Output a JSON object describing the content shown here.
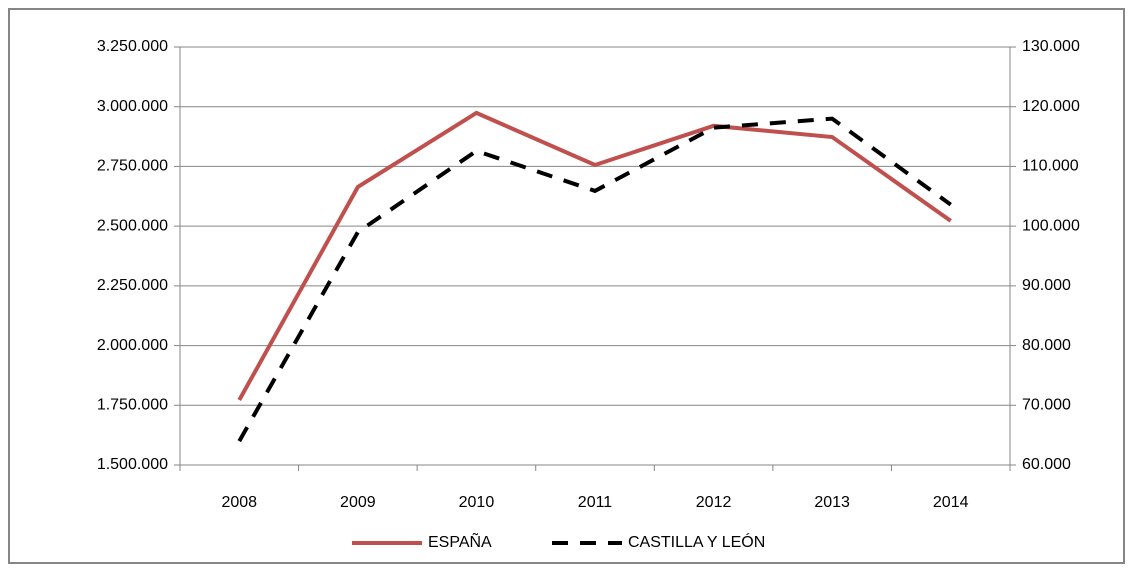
{
  "chart_data": {
    "type": "line",
    "categories": [
      "2008",
      "2009",
      "2010",
      "2011",
      "2012",
      "2013",
      "2014"
    ],
    "series": [
      {
        "name": "ESPAÑA",
        "color": "#c0504d",
        "dash": false,
        "axis": "y",
        "values": [
          1772000,
          2664000,
          2974000,
          2756000,
          2920000,
          2873000,
          2522000
        ]
      },
      {
        "name": "CASTILLA Y LEÓN",
        "color": "#000000",
        "dash": true,
        "axis": "y2",
        "values": [
          64000,
          99000,
          112600,
          105900,
          116500,
          118000,
          103600
        ]
      }
    ],
    "ylim": [
      1500000,
      3250000
    ],
    "yticks": [
      {
        "value": 1500000,
        "label": "1.500.000"
      },
      {
        "value": 1750000,
        "label": "1.750.000"
      },
      {
        "value": 2000000,
        "label": "2.000.000"
      },
      {
        "value": 2250000,
        "label": "2.250.000"
      },
      {
        "value": 2500000,
        "label": "2.500.000"
      },
      {
        "value": 2750000,
        "label": "2.750.000"
      },
      {
        "value": 3000000,
        "label": "3.000.000"
      },
      {
        "value": 3250000,
        "label": "3.250.000"
      }
    ],
    "y2lim": [
      60000,
      130000
    ],
    "y2ticks": [
      {
        "value": 60000,
        "label": "60.000"
      },
      {
        "value": 70000,
        "label": "70.000"
      },
      {
        "value": 80000,
        "label": "80.000"
      },
      {
        "value": 90000,
        "label": "90.000"
      },
      {
        "value": 100000,
        "label": "100.000"
      },
      {
        "value": 110000,
        "label": "110.000"
      },
      {
        "value": 120000,
        "label": "120.000"
      },
      {
        "value": 130000,
        "label": "130.000"
      }
    ],
    "grid": true,
    "legend": "bottom"
  }
}
